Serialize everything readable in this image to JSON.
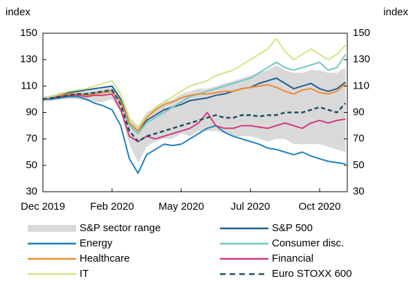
{
  "chart_data": {
    "type": "line",
    "ylabel": "index",
    "y2label": "index",
    "categories": [
      "Dec 2019",
      null,
      null,
      null,
      null,
      null,
      null,
      null,
      "Feb 2020",
      null,
      null,
      null,
      null,
      null,
      null,
      null,
      "May 2020",
      null,
      null,
      null,
      null,
      null,
      null,
      null,
      "Jul 2020",
      null,
      null,
      null,
      null,
      null,
      null,
      null,
      "Oct 2020",
      null,
      null,
      null
    ],
    "ylim": [
      30,
      150
    ],
    "yticks": [
      30,
      50,
      70,
      90,
      110,
      130,
      150
    ],
    "y2lim": [
      30,
      150
    ],
    "y2ticks": [
      30,
      50,
      70,
      90,
      110,
      130,
      150
    ],
    "range": {
      "name": "S&P sector range",
      "color": "#d9d9d9",
      "low": [
        98,
        99,
        100,
        100,
        100,
        99,
        98,
        98,
        100,
        90,
        66,
        52,
        64,
        68,
        70,
        70,
        74,
        72,
        76,
        76,
        76,
        74,
        72,
        72,
        72,
        70,
        68,
        70,
        70,
        66,
        66,
        66,
        66,
        64,
        62,
        60
      ],
      "high": [
        102,
        103,
        105,
        106,
        106,
        106,
        107,
        108,
        110,
        102,
        86,
        80,
        90,
        94,
        98,
        100,
        104,
        106,
        108,
        108,
        110,
        112,
        114,
        116,
        118,
        120,
        122,
        126,
        122,
        120,
        120,
        122,
        122,
        120,
        120,
        124
      ]
    },
    "series": [
      {
        "name": "S&P 500",
        "color": "#1f5f8f",
        "values": [
          100,
          102,
          104,
          105,
          106,
          107,
          108,
          109,
          110,
          100,
          82,
          76,
          84,
          88,
          92,
          94,
          96,
          99,
          100,
          101,
          103,
          104,
          106,
          108,
          109,
          112,
          114,
          116,
          112,
          108,
          110,
          112,
          108,
          106,
          108,
          113
        ]
      },
      {
        "name": "Energy",
        "color": "#1a7fbf",
        "values": [
          100,
          100,
          101,
          102,
          102,
          100,
          97,
          95,
          92,
          80,
          55,
          44,
          58,
          62,
          66,
          65,
          66,
          70,
          74,
          78,
          80,
          75,
          72,
          70,
          68,
          66,
          63,
          62,
          60,
          58,
          60,
          57,
          55,
          53,
          52,
          51
        ]
      },
      {
        "name": "Consumer disc.",
        "color": "#6fc7c1",
        "values": [
          100,
          101,
          103,
          104,
          104,
          104,
          105,
          106,
          107,
          98,
          80,
          74,
          82,
          86,
          90,
          94,
          98,
          102,
          104,
          106,
          108,
          110,
          112,
          114,
          116,
          120,
          124,
          128,
          124,
          122,
          124,
          126,
          128,
          122,
          124,
          134
        ]
      },
      {
        "name": "Healthcare",
        "color": "#f08a2c",
        "values": [
          100,
          101,
          103,
          104,
          104,
          103,
          104,
          105,
          106,
          98,
          82,
          76,
          86,
          92,
          96,
          98,
          101,
          103,
          104,
          104,
          105,
          106,
          106,
          108,
          109,
          110,
          111,
          109,
          106,
          104,
          107,
          108,
          105,
          104,
          106,
          112
        ]
      },
      {
        "name": "Financial",
        "color": "#d6367c",
        "values": [
          100,
          101,
          102,
          103,
          103,
          102,
          103,
          103,
          104,
          92,
          72,
          68,
          72,
          70,
          72,
          74,
          76,
          78,
          82,
          90,
          80,
          78,
          78,
          80,
          80,
          79,
          78,
          80,
          82,
          80,
          78,
          82,
          84,
          82,
          84,
          85
        ]
      },
      {
        "name": "IT",
        "color": "#cfe584",
        "values": [
          100,
          102,
          104,
          106,
          107,
          108,
          110,
          112,
          114,
          104,
          86,
          78,
          88,
          94,
          98,
          102,
          106,
          110,
          112,
          114,
          118,
          120,
          122,
          126,
          130,
          134,
          138,
          146,
          136,
          130,
          134,
          138,
          134,
          130,
          134,
          141
        ]
      },
      {
        "name": "Euro STOXX 600",
        "color": "#1b4f5f",
        "dash": true,
        "values": [
          100,
          101,
          102,
          103,
          104,
          104,
          105,
          106,
          107,
          96,
          76,
          68,
          72,
          74,
          76,
          78,
          80,
          82,
          84,
          86,
          88,
          86,
          86,
          88,
          88,
          87,
          88,
          88,
          90,
          90,
          90,
          92,
          94,
          92,
          90,
          97
        ]
      }
    ]
  }
}
